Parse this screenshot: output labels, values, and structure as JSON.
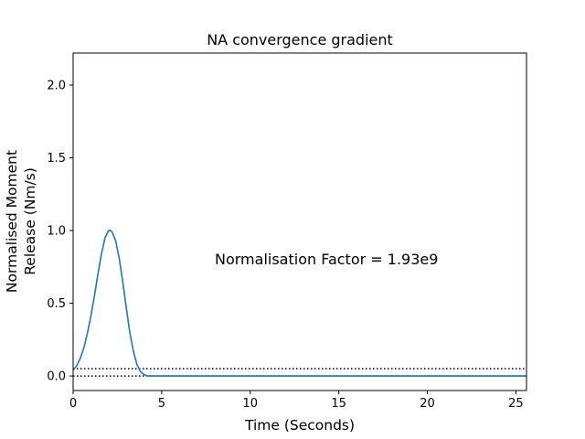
{
  "chart_data": {
    "type": "line",
    "title": "NA convergence gradient",
    "xlabel": "Time (Seconds)",
    "ylabel_lines": [
      "Normalised Moment",
      "Release (Nm/s)"
    ],
    "xlim": [
      0,
      25.6
    ],
    "ylim": [
      -0.1,
      2.22
    ],
    "xticks": [
      0,
      5,
      10,
      15,
      20,
      25
    ],
    "yticks": [
      0.0,
      0.5,
      1.0,
      1.5,
      2.0
    ],
    "xtick_labels": [
      "0",
      "5",
      "10",
      "15",
      "20",
      "25"
    ],
    "ytick_labels": [
      "0.0",
      "0.5",
      "1.0",
      "1.5",
      "2.0"
    ],
    "series": [
      {
        "color": "#1f77b4",
        "x": [
          0,
          0.2,
          0.4,
          0.6,
          0.8,
          1.0,
          1.2,
          1.4,
          1.6,
          1.8,
          2.0,
          2.1,
          2.2,
          2.4,
          2.6,
          2.8,
          3.0,
          3.2,
          3.4,
          3.6,
          3.8,
          4.0,
          4.2,
          4.5,
          5.0,
          10,
          15,
          20,
          25.6
        ],
        "y": [
          0.04,
          0.07,
          0.12,
          0.19,
          0.29,
          0.41,
          0.55,
          0.7,
          0.84,
          0.95,
          1.0,
          1.0,
          0.99,
          0.93,
          0.81,
          0.65,
          0.47,
          0.3,
          0.17,
          0.08,
          0.03,
          0.01,
          0.0,
          0.0,
          0.0,
          0.0,
          0.0,
          0.0,
          0.0
        ]
      }
    ],
    "reference_lines": [
      {
        "y": 0.05,
        "style": "dotted",
        "color": "#000000"
      },
      {
        "y": 0.0,
        "style": "dotted",
        "color": "#000000"
      }
    ],
    "annotation": {
      "text": "Normalisation Factor = 1.93e9",
      "x": 8.0,
      "y": 0.8
    },
    "grid": false
  }
}
